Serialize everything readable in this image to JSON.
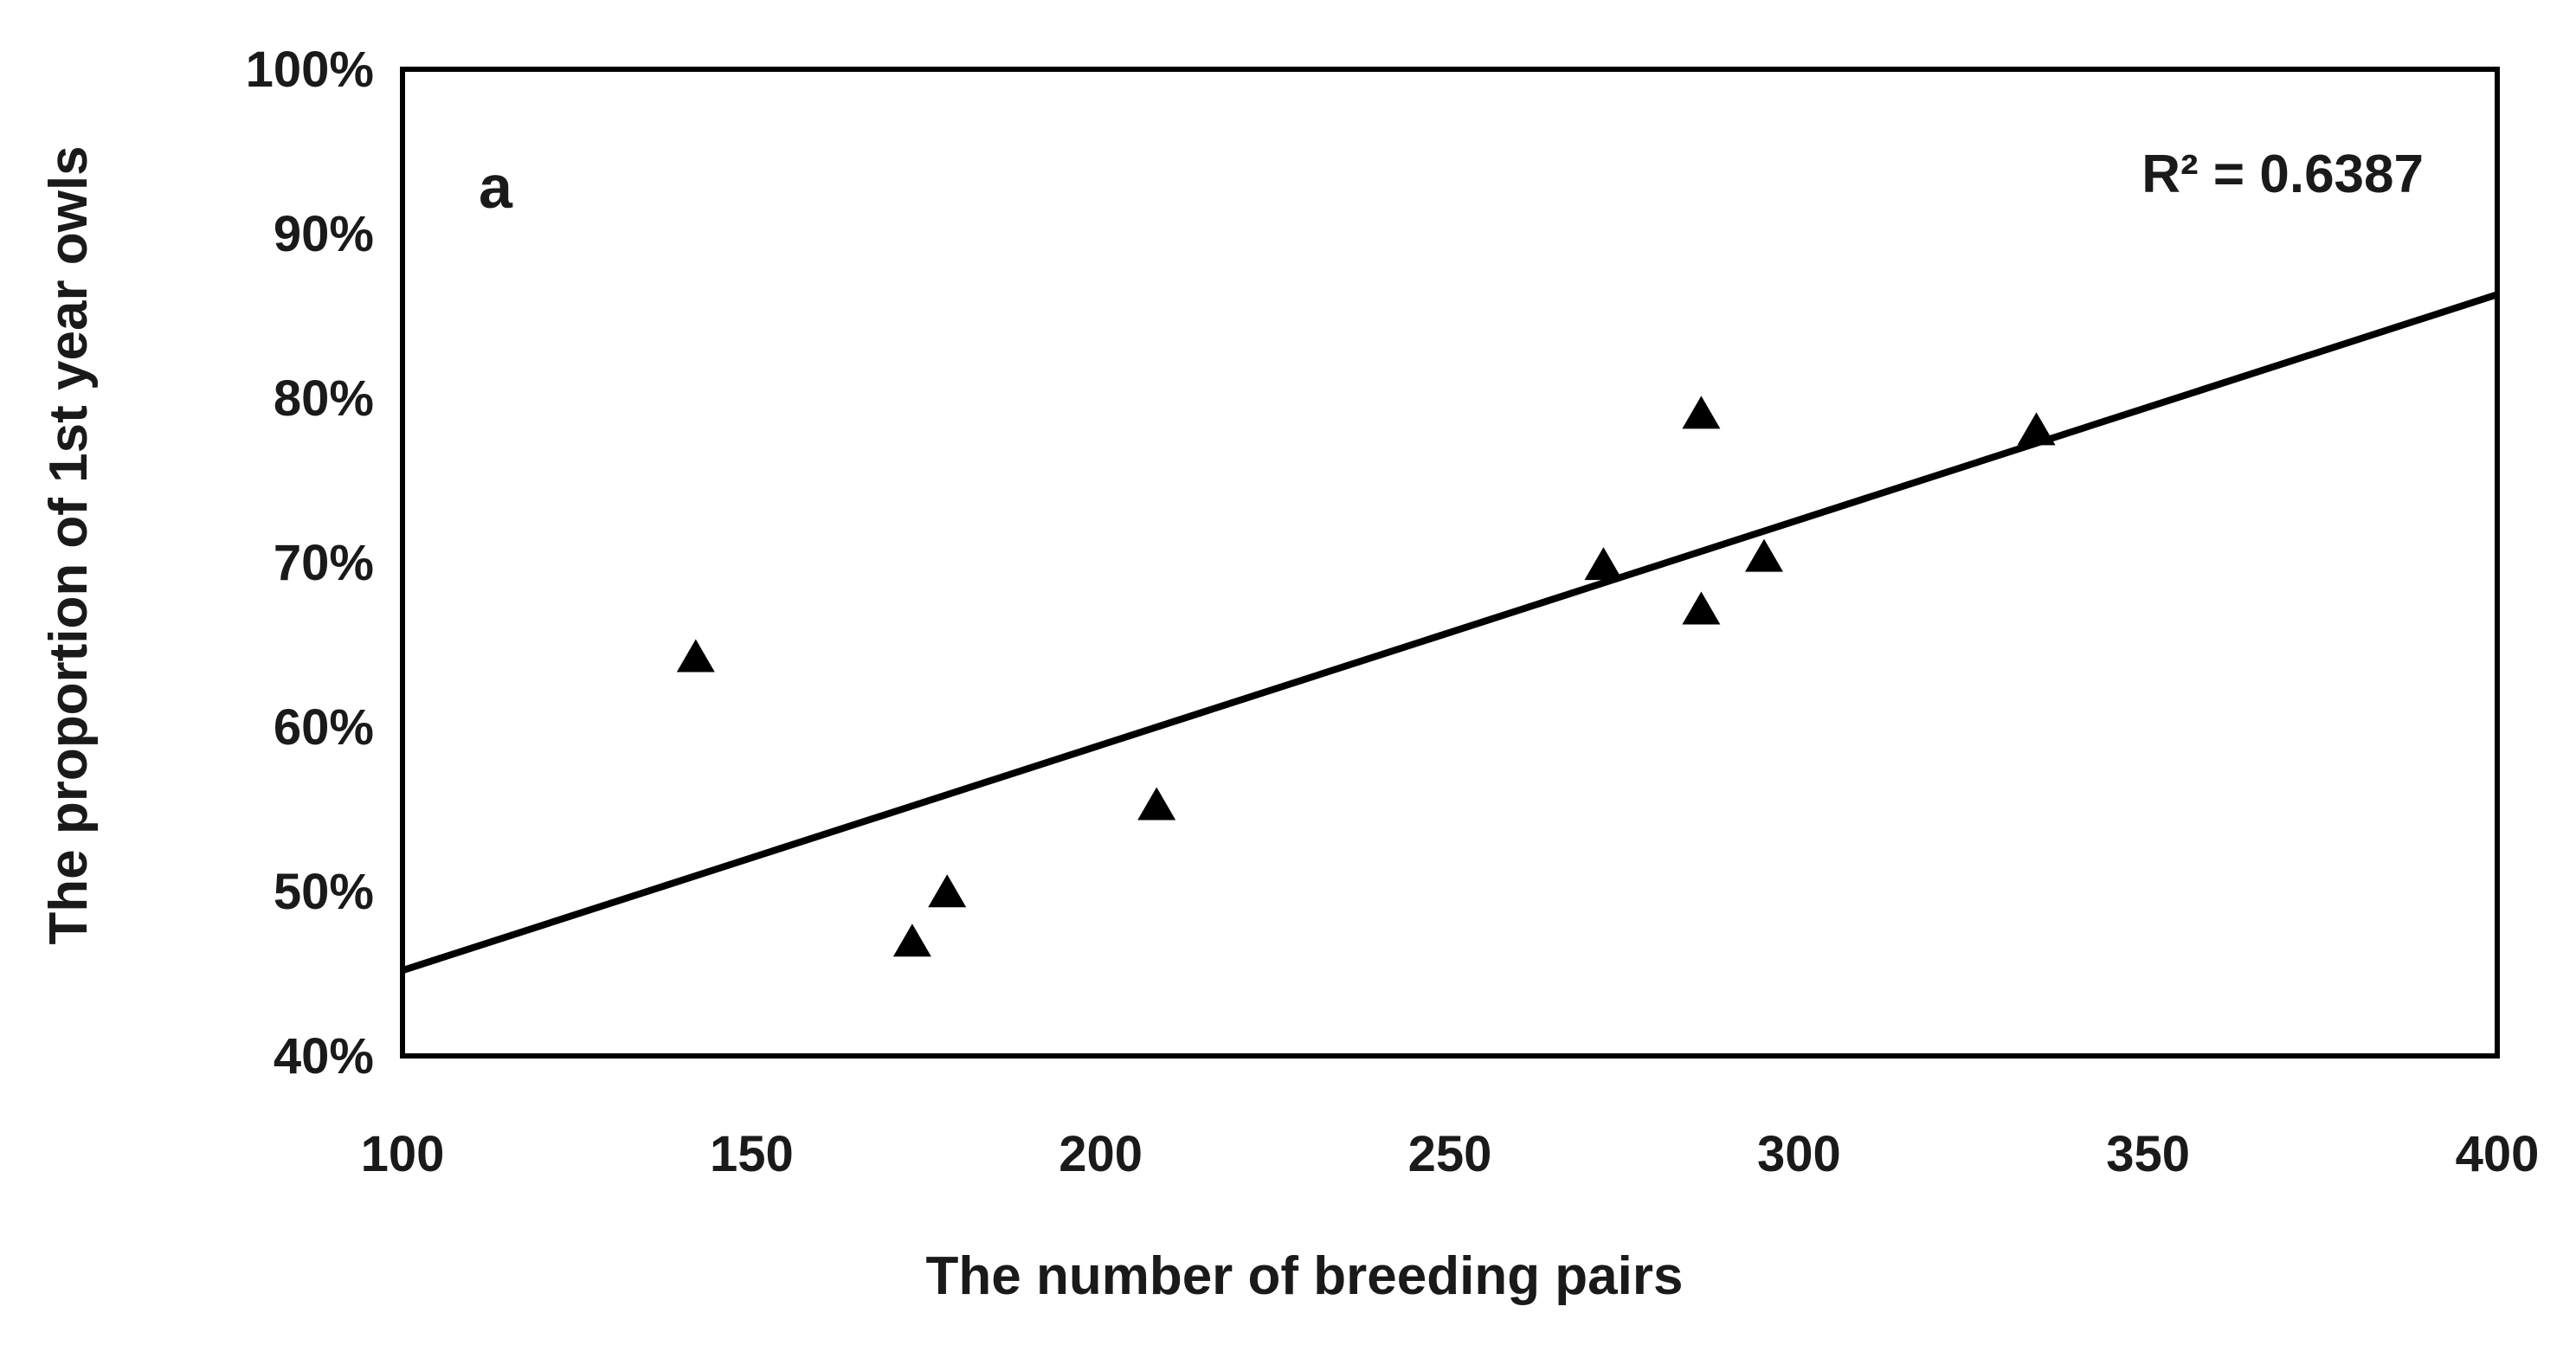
{
  "chart_data": {
    "type": "scatter",
    "xlabel": "The number of breeding pairs",
    "ylabel": "The proportion of  1st year owls",
    "xlim": [
      100,
      400
    ],
    "ylim": [
      0.4,
      1.0
    ],
    "x_ticks": [
      100,
      150,
      200,
      250,
      300,
      350,
      400
    ],
    "x_tick_labels": [
      "100",
      "150",
      "200",
      "250",
      "300",
      "350",
      "400"
    ],
    "y_ticks": [
      0.4,
      0.5,
      0.6,
      0.7,
      0.8,
      0.9,
      1.0
    ],
    "y_tick_labels": [
      "40%",
      "50%",
      "60%",
      "70%",
      "80%",
      "90%",
      "100%"
    ],
    "grid": false,
    "marker": "triangle",
    "marker_color": "#000000",
    "series": [
      {
        "points": [
          {
            "x": 142,
            "y": 0.641
          },
          {
            "x": 173,
            "y": 0.468
          },
          {
            "x": 178,
            "y": 0.498
          },
          {
            "x": 208,
            "y": 0.551
          },
          {
            "x": 272,
            "y": 0.697
          },
          {
            "x": 286,
            "y": 0.789
          },
          {
            "x": 286,
            "y": 0.67
          },
          {
            "x": 295,
            "y": 0.702
          },
          {
            "x": 334,
            "y": 0.779
          }
        ]
      }
    ],
    "trendline": {
      "type": "linear",
      "x": [
        100,
        400
      ],
      "y": [
        0.452,
        0.863
      ]
    },
    "annotations": {
      "panel_label": "a",
      "r_squared": "R² = 0.6387"
    }
  }
}
